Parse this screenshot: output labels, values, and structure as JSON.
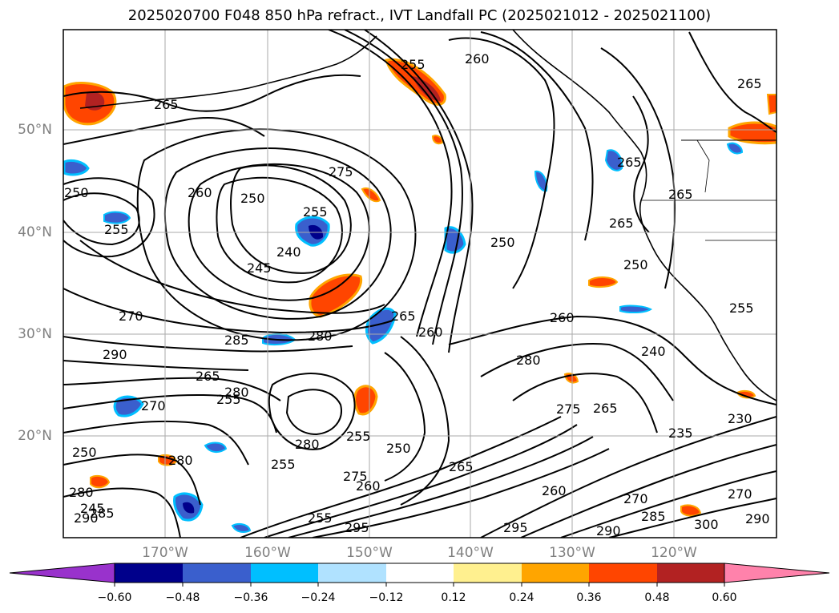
{
  "title": "2025020700 F048 850 hPa refract., IVT Landfall PC (2025021012 - 2025021100)",
  "map": {
    "lat_labels": [
      "50°N",
      "40°N",
      "30°N",
      "20°N"
    ],
    "lon_labels": [
      "170°W",
      "160°W",
      "150°W",
      "140°W",
      "130°W",
      "120°W"
    ],
    "contour_labels": [
      "265",
      "255",
      "260",
      "265",
      "275",
      "250",
      "255",
      "240",
      "245",
      "260",
      "255",
      "270",
      "285",
      "280",
      "290",
      "265",
      "280",
      "270",
      "250",
      "260",
      "265",
      "280",
      "265",
      "255",
      "265",
      "280",
      "250",
      "255",
      "270",
      "275",
      "265",
      "260",
      "250",
      "255",
      "235",
      "240",
      "230",
      "285",
      "290",
      "300",
      "295",
      "255",
      "285",
      "290",
      "260",
      "270",
      "250",
      "265",
      "280",
      "260",
      "275",
      "255",
      "280",
      "295",
      "290",
      "250",
      "245",
      "265"
    ]
  },
  "colorbar": {
    "ticks": [
      "−0.60",
      "−0.48",
      "−0.36",
      "−0.24",
      "−0.12",
      "0.12",
      "0.24",
      "0.36",
      "0.48",
      "0.60"
    ],
    "colors": [
      "#9932cc",
      "#00008b",
      "#3a5fcd",
      "#00bfff",
      "#b0e2ff",
      "#ffffff",
      "#fff08f",
      "#ffa500",
      "#ff4500",
      "#b22222",
      "#ff82ab"
    ]
  }
}
